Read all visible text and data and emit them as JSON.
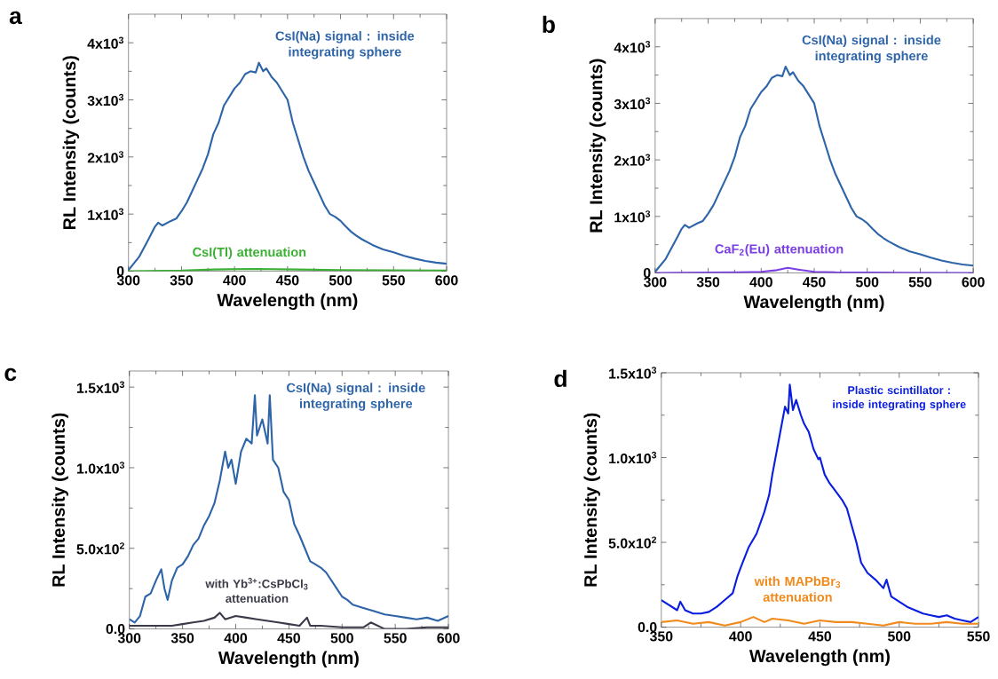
{
  "chart_data": [
    {
      "type": "line",
      "title": "a",
      "xlabel": "Wavelength (nm)",
      "ylabel": "RL Intensity (counts)",
      "xlim": [
        300,
        600
      ],
      "xticks": [
        300,
        350,
        400,
        450,
        500,
        550,
        600
      ],
      "ylim": [
        0,
        4500
      ],
      "yticks": [
        {
          "value": 0,
          "label": "0"
        },
        {
          "value": 1000,
          "label": "1x10$^{3}$"
        },
        {
          "value": 2000,
          "label": "2x10$^{3}$"
        },
        {
          "value": 3000,
          "label": "3x10$^{3}$"
        },
        {
          "value": 4000,
          "label": "4x10$^{3}$"
        }
      ],
      "series": [
        {
          "name": "CsI(Na) signal : inside integrating sphere",
          "color": "#2e64a8",
          "x": [
            300,
            310,
            320,
            325,
            328,
            332,
            340,
            345,
            350,
            355,
            360,
            365,
            370,
            375,
            380,
            385,
            390,
            395,
            400,
            405,
            410,
            415,
            420,
            423,
            427,
            430,
            435,
            440,
            445,
            450,
            455,
            460,
            465,
            470,
            475,
            480,
            485,
            490,
            495,
            500,
            505,
            510,
            515,
            520,
            530,
            540,
            550,
            560,
            570,
            580,
            590,
            600
          ],
          "values": [
            20,
            250,
            600,
            780,
            850,
            800,
            880,
            920,
            1050,
            1200,
            1400,
            1600,
            1800,
            2050,
            2400,
            2600,
            2900,
            3050,
            3200,
            3300,
            3450,
            3500,
            3480,
            3650,
            3500,
            3550,
            3400,
            3300,
            3150,
            3000,
            2600,
            2300,
            2000,
            1750,
            1550,
            1350,
            1150,
            1000,
            950,
            880,
            780,
            690,
            620,
            560,
            460,
            380,
            330,
            270,
            220,
            180,
            150,
            130
          ]
        },
        {
          "name": "CsI(Tl) attenuation",
          "color": "#3cb035",
          "x": [
            300,
            350,
            380,
            420,
            460,
            500,
            600
          ],
          "values": [
            0,
            10,
            30,
            40,
            30,
            20,
            10
          ]
        }
      ]
    },
    {
      "type": "line",
      "title": "b",
      "xlabel": "Wavelength (nm)",
      "ylabel": "RL Intensity (counts)",
      "xlim": [
        300,
        600
      ],
      "xticks": [
        300,
        350,
        400,
        450,
        500,
        550,
        600
      ],
      "ylim": [
        0,
        4500
      ],
      "yticks": [
        {
          "value": 0,
          "label": "0"
        },
        {
          "value": 1000,
          "label": "1x10$^{3}$"
        },
        {
          "value": 2000,
          "label": "2x10$^{3}$"
        },
        {
          "value": 3000,
          "label": "3x10$^{3}$"
        },
        {
          "value": 4000,
          "label": "4x10$^{3}$"
        }
      ],
      "series": [
        {
          "name": "CsI(Na) signal : inside integrating sphere",
          "color": "#2e64a8",
          "x": [
            300,
            310,
            320,
            325,
            328,
            332,
            340,
            345,
            350,
            355,
            360,
            365,
            370,
            375,
            380,
            385,
            390,
            395,
            400,
            405,
            410,
            415,
            420,
            423,
            427,
            430,
            435,
            440,
            445,
            450,
            455,
            460,
            465,
            470,
            475,
            480,
            485,
            490,
            495,
            500,
            505,
            510,
            515,
            520,
            530,
            540,
            550,
            560,
            570,
            580,
            590,
            600
          ],
          "values": [
            20,
            250,
            600,
            780,
            850,
            800,
            880,
            920,
            1050,
            1200,
            1400,
            1600,
            1800,
            2050,
            2400,
            2600,
            2900,
            3050,
            3200,
            3300,
            3450,
            3500,
            3480,
            3650,
            3500,
            3550,
            3400,
            3300,
            3150,
            3000,
            2600,
            2300,
            2000,
            1750,
            1550,
            1350,
            1150,
            1000,
            950,
            880,
            780,
            690,
            620,
            560,
            460,
            380,
            330,
            270,
            220,
            180,
            150,
            130
          ]
        },
        {
          "name": "CaF$_{2}$(Eu) attenuation",
          "color": "#7b3fe4",
          "x": [
            300,
            380,
            400,
            415,
            425,
            435,
            450,
            470,
            600
          ],
          "values": [
            0,
            10,
            20,
            50,
            90,
            60,
            20,
            10,
            0
          ]
        }
      ]
    },
    {
      "type": "line",
      "title": "c",
      "xlabel": "Wavelength (nm)",
      "ylabel": "RL Intensity (counts)",
      "xlim": [
        300,
        600
      ],
      "xticks": [
        300,
        350,
        400,
        450,
        500,
        550,
        600
      ],
      "ylim": [
        0,
        1600
      ],
      "yticks": [
        {
          "value": 0,
          "label": "0.0"
        },
        {
          "value": 500,
          "label": "5.0x10$^{2}$"
        },
        {
          "value": 1000,
          "label": "1.0x10$^{3}$"
        },
        {
          "value": 1500,
          "label": "1.5x10$^{3}$"
        }
      ],
      "series": [
        {
          "name": "CsI(Na) signal : inside integrating sphere",
          "color": "#2e64a8",
          "x": [
            300,
            305,
            310,
            315,
            320,
            325,
            330,
            333,
            336,
            340,
            345,
            350,
            355,
            360,
            365,
            370,
            375,
            380,
            385,
            390,
            393,
            396,
            400,
            405,
            410,
            415,
            418,
            420,
            425,
            430,
            432,
            435,
            440,
            445,
            450,
            455,
            460,
            465,
            470,
            475,
            480,
            485,
            490,
            495,
            500,
            505,
            510,
            520,
            530,
            540,
            550,
            560,
            570,
            580,
            590,
            600
          ],
          "values": [
            60,
            40,
            80,
            200,
            220,
            300,
            370,
            250,
            180,
            300,
            380,
            400,
            450,
            520,
            560,
            640,
            700,
            780,
            920,
            1100,
            1000,
            1050,
            900,
            1100,
            1180,
            1150,
            1450,
            1200,
            1300,
            1150,
            1450,
            1050,
            1000,
            850,
            800,
            650,
            580,
            500,
            420,
            400,
            380,
            350,
            300,
            250,
            200,
            180,
            150,
            130,
            110,
            90,
            80,
            70,
            60,
            70,
            50,
            80
          ]
        },
        {
          "name": "with Yb$^{3+}$:CsPbCl$_{3}$ attenuation",
          "color": "#3a3a48",
          "x": [
            300,
            320,
            340,
            350,
            360,
            370,
            380,
            385,
            390,
            400,
            410,
            420,
            430,
            440,
            450,
            460,
            467,
            470,
            480,
            500,
            520,
            527,
            540,
            560,
            580,
            600
          ],
          "values": [
            20,
            20,
            20,
            30,
            40,
            50,
            70,
            100,
            60,
            80,
            70,
            60,
            50,
            40,
            30,
            20,
            70,
            20,
            20,
            10,
            10,
            40,
            0,
            0,
            10,
            10
          ]
        }
      ]
    },
    {
      "type": "line",
      "title": "d",
      "xlabel": "Wavelength (nm)",
      "ylabel": "RL Intensity (counts)",
      "xlim": [
        350,
        550
      ],
      "xticks": [
        350,
        400,
        450,
        500,
        550
      ],
      "ylim": [
        0,
        1500
      ],
      "yticks": [
        {
          "value": 0,
          "label": "0.0"
        },
        {
          "value": 500,
          "label": "5.0x10$^{2}$"
        },
        {
          "value": 1000,
          "label": "1.0x10$^{3}$"
        },
        {
          "value": 1500,
          "label": "1.5x10$^{3}$"
        }
      ],
      "series": [
        {
          "name": "Plastic scintillator : inside integrating sphere",
          "color": "#0a1ee0",
          "x": [
            350,
            355,
            360,
            362,
            365,
            370,
            375,
            380,
            385,
            390,
            395,
            398,
            400,
            405,
            410,
            415,
            418,
            420,
            423,
            426,
            428,
            430,
            431,
            433,
            435,
            438,
            440,
            443,
            446,
            449,
            450,
            453,
            456,
            460,
            464,
            467,
            470,
            473,
            476,
            480,
            485,
            490,
            492,
            495,
            500,
            505,
            510,
            515,
            520,
            525,
            530,
            535,
            540,
            545,
            550
          ],
          "values": [
            160,
            130,
            100,
            150,
            100,
            80,
            80,
            90,
            120,
            160,
            200,
            300,
            350,
            470,
            550,
            680,
            780,
            900,
            1050,
            1200,
            1300,
            1260,
            1430,
            1280,
            1340,
            1250,
            1200,
            1150,
            1050,
            990,
            1000,
            900,
            850,
            800,
            750,
            700,
            600,
            500,
            380,
            320,
            280,
            230,
            280,
            180,
            150,
            120,
            100,
            80,
            70,
            60,
            70,
            50,
            40,
            30,
            60
          ]
        },
        {
          "name": "with MAPbBr$_{3}$ attenuation",
          "color": "#f08a1c",
          "x": [
            350,
            360,
            370,
            380,
            390,
            400,
            408,
            415,
            420,
            430,
            440,
            450,
            460,
            470,
            480,
            490,
            500,
            510,
            520,
            530,
            540,
            550
          ],
          "values": [
            30,
            40,
            20,
            30,
            10,
            30,
            60,
            30,
            50,
            40,
            20,
            40,
            30,
            30,
            20,
            10,
            30,
            20,
            20,
            30,
            20,
            20
          ]
        }
      ]
    }
  ]
}
